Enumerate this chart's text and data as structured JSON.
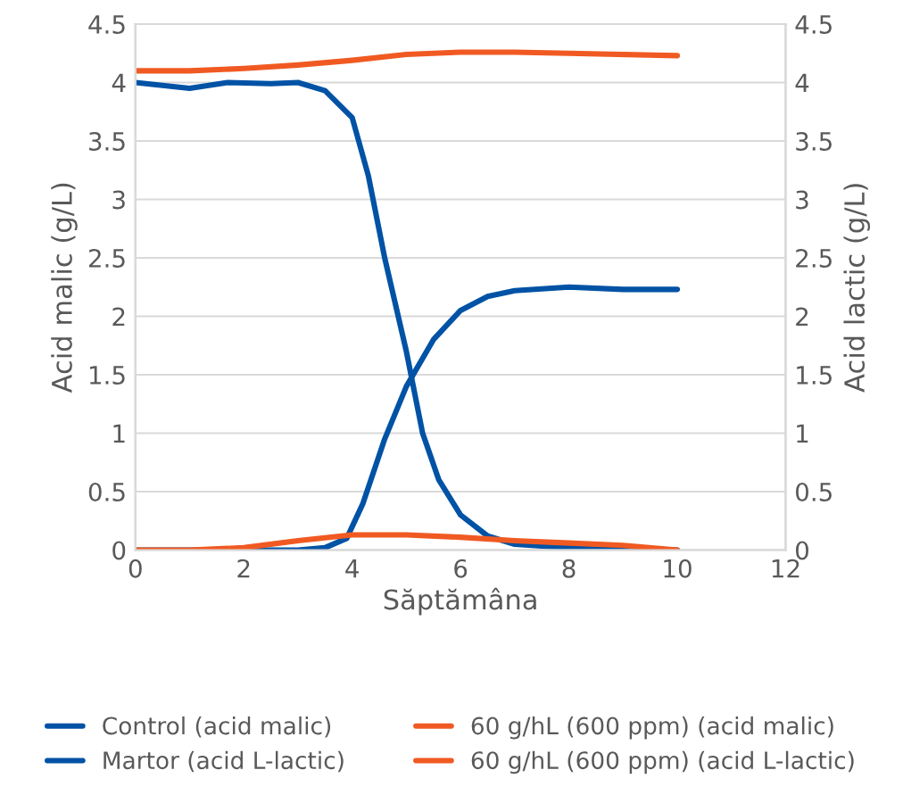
{
  "chart_data": {
    "type": "line",
    "xlabel": "Săptămâna",
    "ylabel": "Acid malic (g/L)",
    "y2label": "Acid lactic (g/L)",
    "xlim": [
      0,
      12
    ],
    "xticks": [
      0,
      2,
      4,
      6,
      8,
      10,
      12
    ],
    "ylim": [
      0,
      4.5
    ],
    "yticks": [
      0,
      0.5,
      1,
      1.5,
      2,
      2.5,
      3,
      3.5,
      4,
      4.5
    ],
    "y2lim": [
      0,
      4.5
    ],
    "y2ticks": [
      0,
      0.5,
      1,
      1.5,
      2,
      2.5,
      3,
      3.5,
      4,
      4.5
    ],
    "grid": "y",
    "legend": "bottom",
    "marker": "none",
    "line_style": "solid",
    "series": [
      {
        "name": "Control (acid malic)",
        "color": "#0052a5",
        "x": [
          0,
          1,
          1.7,
          2.5,
          3,
          3.5,
          4,
          4.3,
          4.6,
          5,
          5.3,
          5.6,
          6,
          6.5,
          7,
          8,
          9,
          10
        ],
        "values": [
          4.0,
          3.95,
          4.0,
          3.99,
          4.0,
          3.93,
          3.7,
          3.2,
          2.5,
          1.7,
          1.0,
          0.6,
          0.3,
          0.12,
          0.05,
          0.02,
          0.02,
          0.0
        ]
      },
      {
        "name": "60 g/hL (600 ppm) (acid malic)",
        "color": "#f05a22",
        "x": [
          0,
          1,
          2,
          3,
          4,
          5,
          6,
          7,
          8,
          10
        ],
        "values": [
          4.1,
          4.1,
          4.12,
          4.15,
          4.19,
          4.24,
          4.26,
          4.26,
          4.25,
          4.23
        ]
      },
      {
        "name": "Martor (acid L-lactic)",
        "color": "#0052a5",
        "axis": "y2",
        "x": [
          0,
          1,
          2,
          3,
          3.5,
          3.9,
          4.2,
          4.6,
          5,
          5.5,
          6,
          6.5,
          7,
          8,
          9,
          10
        ],
        "values": [
          0,
          0,
          0,
          0,
          0.02,
          0.1,
          0.4,
          0.95,
          1.4,
          1.8,
          2.05,
          2.17,
          2.22,
          2.25,
          2.23,
          2.23
        ]
      },
      {
        "name": "60 g/hL (600 ppm) (acid L-lactic)",
        "color": "#f05a22",
        "axis": "y2",
        "x": [
          0,
          1,
          2,
          3,
          4,
          5,
          6,
          7,
          8,
          9,
          10
        ],
        "values": [
          0,
          0,
          0.02,
          0.08,
          0.13,
          0.13,
          0.11,
          0.08,
          0.06,
          0.04,
          0.0
        ]
      }
    ]
  }
}
